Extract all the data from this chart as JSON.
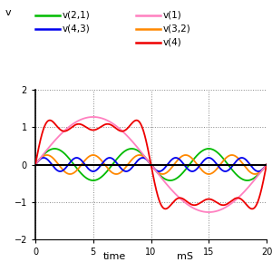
{
  "xlabel": "time",
  "xlabel2": "mS",
  "ylabel": "v",
  "xlim": [
    0.0,
    20.0
  ],
  "ylim": [
    -2.0,
    2.0
  ],
  "xticks": [
    0.0,
    5.0,
    10.0,
    15.0,
    20.0
  ],
  "yticks": [
    -2.0,
    -1.0,
    0.0,
    1.0,
    2.0
  ],
  "period_ms": 20.0,
  "colors": {
    "v1": "#ff80c0",
    "v21": "#00bb00",
    "v32": "#ff8800",
    "v43": "#0000ee",
    "v4": "#ee0000"
  },
  "background": "#ffffff",
  "grid_color": "#888888",
  "zero_line_color": "#000000"
}
